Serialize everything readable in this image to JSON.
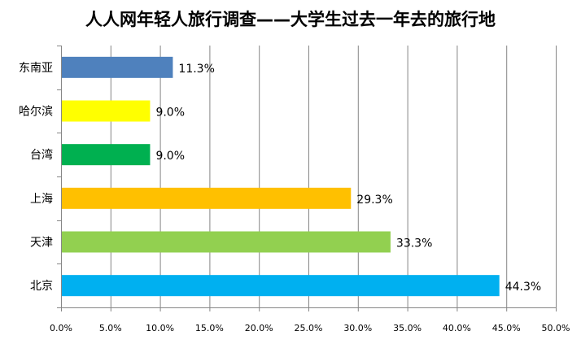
{
  "chart_data": {
    "type": "bar",
    "orientation": "horizontal",
    "title": "人人网年轻人旅行调查——大学生过去一年去的旅行地",
    "categories": [
      "东南亚",
      "哈尔滨",
      "台湾",
      "上海",
      "天津",
      "北京"
    ],
    "values": [
      11.3,
      9.0,
      9.0,
      29.3,
      33.3,
      44.3
    ],
    "data_labels": [
      "11.3%",
      "9.0%",
      "9.0%",
      "29.3%",
      "33.3%",
      "44.3%"
    ],
    "colors": [
      "#4F81BD",
      "#FFFF00",
      "#00B050",
      "#FFC000",
      "#92D050",
      "#00B0F0"
    ],
    "xlim": [
      0,
      50
    ],
    "xticks": [
      0,
      5,
      10,
      15,
      20,
      25,
      30,
      35,
      40,
      45,
      50
    ],
    "xtick_labels": [
      "0.0%",
      "5.0%",
      "10.0%",
      "15.0%",
      "20.0%",
      "25.0%",
      "30.0%",
      "35.0%",
      "40.0%",
      "45.0%",
      "50.0%"
    ],
    "xlabel": "",
    "ylabel": "",
    "grid": "vertical",
    "legend": "none"
  }
}
